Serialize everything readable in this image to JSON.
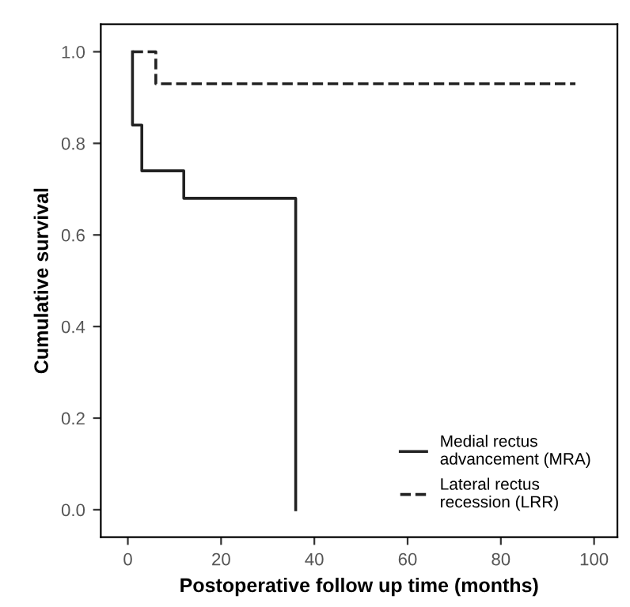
{
  "chart_data": {
    "type": "step",
    "xlabel": "Postoperative follow up time (months)",
    "ylabel": "Cumulative survival",
    "xlim": [
      -5.8,
      105
    ],
    "xticks": [
      0,
      20,
      40,
      60,
      80,
      100
    ],
    "ylim": [
      -0.06,
      1.06
    ],
    "yticks": [
      {
        "value": 0,
        "label": "0.0"
      },
      {
        "value": 0.2,
        "label": "0.2"
      },
      {
        "value": 0.4,
        "label": "0.4"
      },
      {
        "value": 0.6,
        "label": "0.6"
      },
      {
        "value": 0.8,
        "label": "0.8"
      },
      {
        "value": 1,
        "label": "1.0"
      }
    ],
    "legend": "bottom right",
    "grid": false,
    "marker": "none",
    "series": [
      {
        "name": "Medial rectus\nadvancement (MRA)",
        "color": "#222222",
        "line_style": "solid",
        "x": [
          1,
          1,
          3,
          12,
          36
        ],
        "values": [
          1,
          0.84,
          0.74,
          0.68,
          0
        ]
      },
      {
        "name": "Lateral rectus\nrecession (LRR)",
        "color": "#222222",
        "line_style": "dashed",
        "x": [
          1,
          6,
          96
        ],
        "values": [
          1,
          0.93,
          0.93
        ]
      }
    ]
  }
}
